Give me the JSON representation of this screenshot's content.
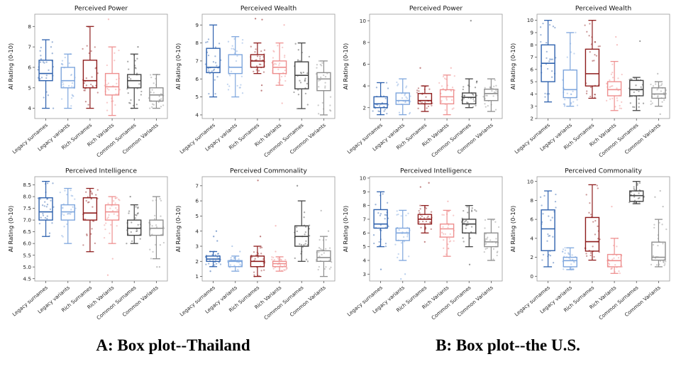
{
  "figure": {
    "caption_a": "A: Box plot--Thailand",
    "caption_b": "B: Box plot--the U.S."
  },
  "categories": [
    "Legacy surnames",
    "Legacy variants",
    "Rich Surnames",
    "Rich Variants",
    "Common Surnames",
    "Common Variants"
  ],
  "palette": [
    "#2f62ae",
    "#7ea6dd",
    "#8e1d1d",
    "#ee8f8f",
    "#454545",
    "#8f8f8f"
  ],
  "ylabel": "AI Rating (0-10)",
  "chart_data": [
    {
      "id": "a-power",
      "group": "A",
      "type": "box",
      "title": "Perceived Power",
      "ylabel": "AI Rating (0-10)",
      "ylim": [
        3.5,
        8.6
      ],
      "yticks": [
        4,
        5,
        6,
        7,
        8
      ],
      "ytick_labels": [
        "4",
        "5",
        "6",
        "7",
        "8"
      ],
      "boxes": [
        {
          "label": "Legacy surnames",
          "lo": 4.0,
          "q1": 5.35,
          "med": 5.7,
          "q3": 6.35,
          "hi": 7.35,
          "outliers": []
        },
        {
          "label": "Legacy variants",
          "lo": 4.0,
          "q1": 5.0,
          "med": 5.35,
          "q3": 6.0,
          "hi": 6.65,
          "outliers": []
        },
        {
          "label": "Rich Surnames",
          "lo": 4.0,
          "q1": 5.0,
          "med": 5.35,
          "q3": 6.35,
          "hi": 8.0,
          "outliers": []
        },
        {
          "label": "Rich Variants",
          "lo": 3.65,
          "q1": 4.65,
          "med": 5.05,
          "q3": 5.7,
          "hi": 7.0,
          "outliers": [
            8.35
          ]
        },
        {
          "label": "Common Surnames",
          "lo": 4.0,
          "q1": 5.0,
          "med": 5.35,
          "q3": 5.65,
          "hi": 6.65,
          "outliers": [
            7.0
          ]
        },
        {
          "label": "Common Variants",
          "lo": 4.0,
          "q1": 4.35,
          "med": 4.65,
          "q3": 5.0,
          "hi": 5.65,
          "outliers": []
        }
      ]
    },
    {
      "id": "a-wealth",
      "group": "A",
      "type": "box",
      "title": "Perceived Wealth",
      "ylabel": "AI Rating (0-10)",
      "ylim": [
        3.8,
        9.6
      ],
      "yticks": [
        4,
        5,
        6,
        7,
        8,
        9
      ],
      "ytick_labels": [
        "4",
        "5",
        "6",
        "7",
        "8",
        "9"
      ],
      "boxes": [
        {
          "label": "Legacy surnames",
          "lo": 5.0,
          "q1": 6.35,
          "med": 6.65,
          "q3": 7.7,
          "hi": 9.0,
          "outliers": []
        },
        {
          "label": "Legacy variants",
          "lo": 5.0,
          "q1": 6.3,
          "med": 6.65,
          "q3": 7.35,
          "hi": 8.35,
          "outliers": []
        },
        {
          "label": "Rich Surnames",
          "lo": 6.3,
          "q1": 6.65,
          "med": 7.0,
          "q3": 7.35,
          "hi": 8.0,
          "outliers": [
            9.35,
            9.3,
            5.65,
            5.35
          ]
        },
        {
          "label": "Rich Variants",
          "lo": 5.65,
          "q1": 6.3,
          "med": 6.65,
          "q3": 7.0,
          "hi": 8.0,
          "outliers": [
            9.0,
            4.65
          ]
        },
        {
          "label": "Common Surnames",
          "lo": 4.35,
          "q1": 5.45,
          "med": 6.2,
          "q3": 6.95,
          "hi": 8.0,
          "outliers": []
        },
        {
          "label": "Common Variants",
          "lo": 4.0,
          "q1": 5.35,
          "med": 6.0,
          "q3": 6.35,
          "hi": 7.0,
          "outliers": []
        }
      ]
    },
    {
      "id": "a-intelligence",
      "group": "A",
      "type": "box",
      "title": "Perceived Intelligence",
      "ylabel": "AI Rating (0-10)",
      "ylim": [
        4.4,
        8.85
      ],
      "yticks": [
        4.5,
        5.0,
        5.5,
        6.0,
        6.5,
        7.0,
        7.5,
        8.0,
        8.5
      ],
      "ytick_labels": [
        "4.5",
        "5.0",
        "5.5",
        "6.0",
        "6.5",
        "7.0",
        "7.5",
        "8.0",
        "8.5"
      ],
      "boxes": [
        {
          "label": "Legacy surnames",
          "lo": 6.3,
          "q1": 7.0,
          "med": 7.35,
          "q3": 7.95,
          "hi": 8.65,
          "outliers": []
        },
        {
          "label": "Legacy variants",
          "lo": 6.0,
          "q1": 7.0,
          "med": 7.35,
          "q3": 7.65,
          "hi": 8.35,
          "outliers": []
        },
        {
          "label": "Rich Surnames",
          "lo": 5.65,
          "q1": 7.0,
          "med": 7.3,
          "q3": 7.95,
          "hi": 8.35,
          "outliers": []
        },
        {
          "label": "Rich Variants",
          "lo": 6.0,
          "q1": 7.0,
          "med": 7.35,
          "q3": 7.65,
          "hi": 8.0,
          "outliers": [
            5.35,
            4.65
          ]
        },
        {
          "label": "Common Surnames",
          "lo": 6.0,
          "q1": 6.35,
          "med": 6.65,
          "q3": 7.0,
          "hi": 7.65,
          "outliers": [
            8.0
          ]
        },
        {
          "label": "Common Variants",
          "lo": 5.35,
          "q1": 6.35,
          "med": 6.65,
          "q3": 7.0,
          "hi": 8.0,
          "outliers": [
            5.0,
            5.0
          ]
        }
      ]
    },
    {
      "id": "a-commonality",
      "group": "A",
      "type": "box",
      "title": "Perceived Commonality",
      "ylabel": "AI Rating (0-10)",
      "ylim": [
        0.7,
        7.6
      ],
      "yticks": [
        1,
        2,
        3,
        4,
        5,
        6,
        7
      ],
      "ytick_labels": [
        "1",
        "2",
        "3",
        "4",
        "5",
        "6",
        "7"
      ],
      "boxes": [
        {
          "label": "Legacy surnames",
          "lo": 1.65,
          "q1": 2.0,
          "med": 2.15,
          "q3": 2.35,
          "hi": 2.65,
          "outliers": [
            4.0,
            3.65,
            3.35,
            1.35
          ]
        },
        {
          "label": "Legacy variants",
          "lo": 1.35,
          "q1": 1.65,
          "med": 2.0,
          "q3": 2.05,
          "hi": 2.35,
          "outliers": [
            3.0,
            2.65
          ]
        },
        {
          "label": "Rich Surnames",
          "lo": 1.0,
          "q1": 1.65,
          "med": 2.0,
          "q3": 2.35,
          "hi": 3.0,
          "outliers": [
            7.35,
            3.65
          ]
        },
        {
          "label": "Rich Variants",
          "lo": 1.35,
          "q1": 1.65,
          "med": 1.85,
          "q3": 2.0,
          "hi": 2.3,
          "outliers": [
            4.35,
            2.65
          ]
        },
        {
          "label": "Common Surnames",
          "lo": 2.0,
          "q1": 3.0,
          "med": 3.65,
          "q3": 4.35,
          "hi": 6.0,
          "outliers": [
            7.0
          ]
        },
        {
          "label": "Common Variants",
          "lo": 1.0,
          "q1": 2.0,
          "med": 2.25,
          "q3": 2.7,
          "hi": 3.65,
          "outliers": [
            5.35,
            4.0
          ]
        }
      ]
    },
    {
      "id": "b-power",
      "group": "B",
      "type": "box",
      "title": "Perceived Power",
      "ylabel": "AI Rating (0-10)",
      "ylim": [
        1.0,
        10.6
      ],
      "yticks": [
        2,
        4,
        6,
        8,
        10
      ],
      "ytick_labels": [
        "2",
        "4",
        "6",
        "8",
        "10"
      ],
      "boxes": [
        {
          "label": "Legacy surnames",
          "lo": 1.35,
          "q1": 2.0,
          "med": 2.35,
          "q3": 3.0,
          "hi": 4.3,
          "outliers": []
        },
        {
          "label": "Legacy variants",
          "lo": 1.35,
          "q1": 2.3,
          "med": 2.65,
          "q3": 3.35,
          "hi": 4.65,
          "outliers": []
        },
        {
          "label": "Rich Surnames",
          "lo": 1.65,
          "q1": 2.35,
          "med": 2.65,
          "q3": 3.3,
          "hi": 4.0,
          "outliers": [
            5.65
          ]
        },
        {
          "label": "Rich Variants",
          "lo": 1.35,
          "q1": 2.35,
          "med": 3.0,
          "q3": 3.65,
          "hi": 5.0,
          "outliers": [
            5.65
          ]
        },
        {
          "label": "Common Surnames",
          "lo": 2.0,
          "q1": 2.35,
          "med": 2.95,
          "q3": 3.35,
          "hi": 4.65,
          "outliers": [
            10.0
          ]
        },
        {
          "label": "Common Variants",
          "lo": 1.65,
          "q1": 2.65,
          "med": 3.3,
          "q3": 3.7,
          "hi": 4.65,
          "outliers": []
        }
      ]
    },
    {
      "id": "b-wealth",
      "group": "B",
      "type": "box",
      "title": "Perceived Wealth",
      "ylabel": "AI Rating (0-10)",
      "ylim": [
        2.0,
        10.5
      ],
      "yticks": [
        2,
        3,
        4,
        5,
        6,
        7,
        8,
        9,
        10
      ],
      "ytick_labels": [
        "2",
        "3",
        "4",
        "5",
        "6",
        "7",
        "8",
        "9",
        "10"
      ],
      "boxes": [
        {
          "label": "Legacy surnames",
          "lo": 3.35,
          "q1": 5.0,
          "med": 6.5,
          "q3": 8.0,
          "hi": 10.0,
          "outliers": []
        },
        {
          "label": "Legacy variants",
          "lo": 3.0,
          "q1": 3.7,
          "med": 4.35,
          "q3": 5.95,
          "hi": 9.0,
          "outliers": []
        },
        {
          "label": "Rich Surnames",
          "lo": 3.65,
          "q1": 4.65,
          "med": 5.65,
          "q3": 7.65,
          "hi": 10.0,
          "outliers": []
        },
        {
          "label": "Rich Variants",
          "lo": 2.65,
          "q1": 3.85,
          "med": 4.35,
          "q3": 5.0,
          "hi": 6.65,
          "outliers": [
            8.65,
            8.0
          ]
        },
        {
          "label": "Common Surnames",
          "lo": 2.65,
          "q1": 3.85,
          "med": 4.35,
          "q3": 5.1,
          "hi": 5.35,
          "outliers": [
            8.3
          ]
        },
        {
          "label": "Common Variants",
          "lo": 3.0,
          "q1": 3.65,
          "med": 4.0,
          "q3": 4.5,
          "hi": 5.0,
          "outliers": [
            5.65,
            2.35
          ]
        }
      ]
    },
    {
      "id": "b-intelligence",
      "group": "B",
      "type": "box",
      "title": "Perceived Intelligence",
      "ylabel": "AI Rating (0-10)",
      "ylim": [
        2.5,
        10.1
      ],
      "yticks": [
        3,
        4,
        5,
        6,
        7,
        8,
        9,
        10
      ],
      "ytick_labels": [
        "3",
        "4",
        "5",
        "6",
        "7",
        "8",
        "9",
        "10"
      ],
      "boxes": [
        {
          "label": "Legacy surnames",
          "lo": 5.0,
          "q1": 6.35,
          "med": 6.65,
          "q3": 7.7,
          "hi": 9.0,
          "outliers": [
            3.35
          ]
        },
        {
          "label": "Legacy variants",
          "lo": 4.0,
          "q1": 5.45,
          "med": 6.0,
          "q3": 6.35,
          "hi": 7.65,
          "outliers": [
            3.0,
            2.65
          ]
        },
        {
          "label": "Rich Surnames",
          "lo": 6.0,
          "q1": 6.65,
          "med": 7.0,
          "q3": 7.35,
          "hi": 8.0,
          "outliers": [
            9.65,
            9.35,
            5.35
          ]
        },
        {
          "label": "Rich Variants",
          "lo": 4.3,
          "q1": 5.7,
          "med": 6.3,
          "q3": 6.65,
          "hi": 7.65,
          "outliers": [
            8.3
          ]
        },
        {
          "label": "Common Surnames",
          "lo": 5.0,
          "q1": 6.0,
          "med": 6.65,
          "q3": 7.0,
          "hi": 8.0,
          "outliers": [
            3.7
          ]
        },
        {
          "label": "Common Variants",
          "lo": 4.0,
          "q1": 5.0,
          "med": 5.35,
          "q3": 6.0,
          "hi": 7.0,
          "outliers": []
        }
      ]
    },
    {
      "id": "b-commonality",
      "group": "B",
      "type": "box",
      "title": "Perceived Commonality",
      "ylabel": "AI Rating (0-10)",
      "ylim": [
        -0.5,
        10.5
      ],
      "yticks": [
        0,
        2,
        4,
        6,
        8,
        10
      ],
      "ytick_labels": [
        "0",
        "2",
        "4",
        "6",
        "8",
        "10"
      ],
      "boxes": [
        {
          "label": "Legacy surnames",
          "lo": 1.0,
          "q1": 2.7,
          "med": 5.0,
          "q3": 7.0,
          "hi": 9.0,
          "outliers": []
        },
        {
          "label": "Legacy variants",
          "lo": 0.7,
          "q1": 1.0,
          "med": 1.65,
          "q3": 2.0,
          "hi": 3.0,
          "outliers": []
        },
        {
          "label": "Rich Surnames",
          "lo": 1.7,
          "q1": 2.65,
          "med": 3.65,
          "q3": 6.2,
          "hi": 9.65,
          "outliers": []
        },
        {
          "label": "Rich Variants",
          "lo": 0.3,
          "q1": 1.0,
          "med": 1.65,
          "q3": 2.3,
          "hi": 4.0,
          "outliers": [
            7.35
          ]
        },
        {
          "label": "Common Surnames",
          "lo": 7.65,
          "q1": 7.9,
          "med": 8.5,
          "q3": 9.0,
          "hi": 10.0,
          "outliers": []
        },
        {
          "label": "Common Variants",
          "lo": 1.0,
          "q1": 1.7,
          "med": 2.0,
          "q3": 3.6,
          "hi": 6.0,
          "outliers": [
            9.0,
            8.35,
            7.35
          ]
        }
      ]
    }
  ]
}
